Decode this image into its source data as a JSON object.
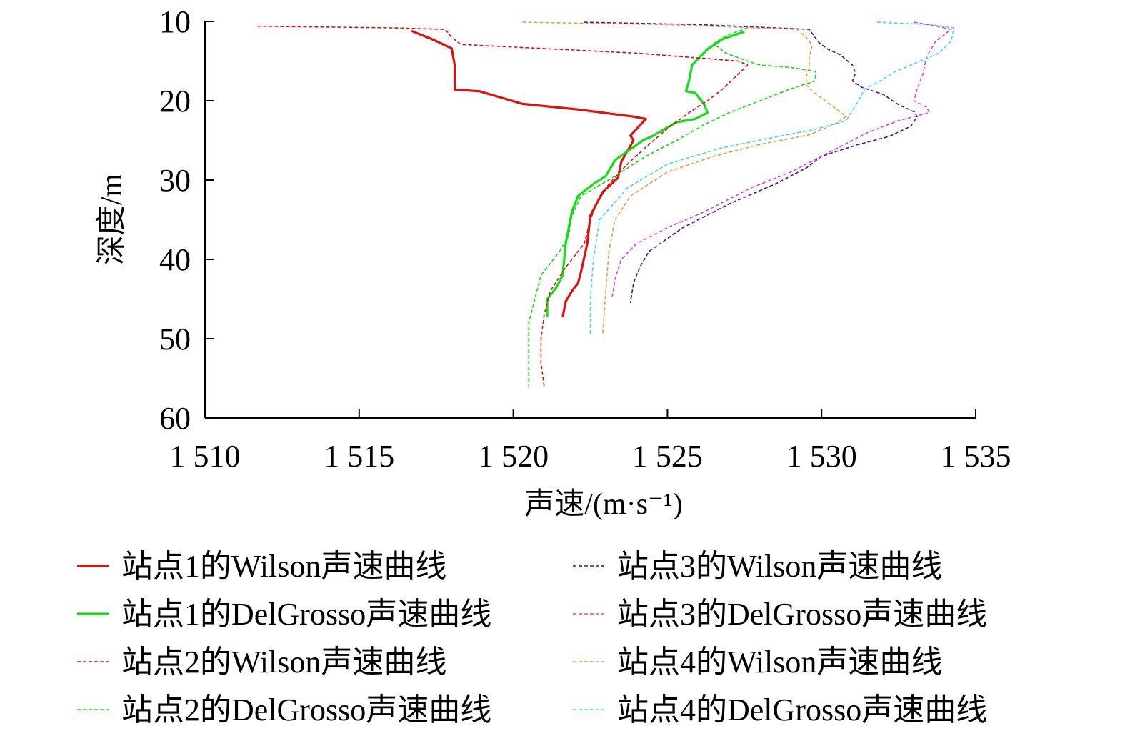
{
  "chart_data": {
    "type": "line",
    "xlabel": "声速/(m·s⁻¹)",
    "ylabel": "深度/m",
    "xlim": [
      1510,
      1535
    ],
    "ylim": [
      10,
      60
    ],
    "y_inverted": true,
    "x_ticks": [
      1510,
      1515,
      1520,
      1525,
      1530,
      1535
    ],
    "x_tick_labels": [
      "1 510",
      "1 515",
      "1 520",
      "1 525",
      "1 530",
      "1 535"
    ],
    "y_ticks": [
      10,
      20,
      30,
      40,
      50,
      60
    ],
    "y_tick_labels": [
      "10",
      "20",
      "30",
      "40",
      "50",
      "60"
    ],
    "grid": false,
    "legend_position": "bottom",
    "series": [
      {
        "name": "站点1的Wilson声速曲线",
        "color": "#e01010",
        "style": "solid",
        "x": [
          1516.7,
          1517.4,
          1518.0,
          1518.1,
          1518.1,
          1518.9,
          1520.3,
          1522.1,
          1523.1,
          1523.9,
          1524.3,
          1523.8,
          1523.9,
          1523.5,
          1523.4,
          1522.9,
          1522.7,
          1522.5,
          1522.4,
          1522.2,
          1522.1,
          1521.9,
          1521.7,
          1521.6
        ],
        "y": [
          11.2,
          12.3,
          13.4,
          15.5,
          18.6,
          18.8,
          20.4,
          21.1,
          21.6,
          22.0,
          22.3,
          24.4,
          25.0,
          27.7,
          29.7,
          31.5,
          33.0,
          34.5,
          38.0,
          41.5,
          43.0,
          44.0,
          45.3,
          47.3
        ]
      },
      {
        "name": "站点1的DelGrosso声速曲线",
        "color": "#12e012",
        "style": "solid",
        "x": [
          1527.5,
          1526.8,
          1526.3,
          1525.8,
          1525.7,
          1525.6,
          1525.9,
          1526.2,
          1526.3,
          1525.9,
          1525.3,
          1524.5,
          1524.2,
          1523.3,
          1523.0,
          1522.6,
          1522.1,
          1521.9,
          1521.7,
          1521.6,
          1521.4,
          1521.1,
          1521.1
        ],
        "y": [
          11.3,
          12.2,
          13.5,
          15.5,
          17.5,
          18.8,
          19.0,
          20.5,
          21.5,
          22.3,
          22.7,
          24.5,
          25.0,
          27.5,
          29.5,
          30.5,
          32.0,
          34.0,
          38.0,
          42.0,
          43.5,
          45.0,
          47.3
        ]
      },
      {
        "name": "站点2的Wilson声速曲线",
        "color": "#e01010",
        "style": "dashed",
        "x": [
          1511.7,
          1516.0,
          1517.8,
          1518.0,
          1518.3,
          1524.0,
          1527.3,
          1527.6,
          1527.2,
          1526.8,
          1526.3,
          1525.7,
          1525.0,
          1524.4,
          1523.7,
          1523.1,
          1522.7,
          1522.5,
          1522.3,
          1521.7,
          1521.2,
          1521.0,
          1520.9,
          1520.9,
          1521.0
        ],
        "y": [
          10.6,
          10.8,
          11.0,
          12.0,
          12.9,
          14.0,
          15.0,
          15.5,
          17.0,
          18.5,
          20.0,
          21.5,
          23.5,
          25.5,
          28.0,
          30.5,
          33.0,
          35.0,
          38.0,
          41.0,
          44.0,
          47.0,
          50.0,
          53.0,
          56.0
        ]
      },
      {
        "name": "站点2的DelGrosso声速曲线",
        "color": "#12e012",
        "style": "dashed",
        "x": [
          1527.6,
          1526.9,
          1526.5,
          1526.9,
          1527.6,
          1528.0,
          1529.0,
          1529.8,
          1529.8,
          1529.0,
          1528.0,
          1527.0,
          1526.2,
          1525.3,
          1524.3,
          1523.3,
          1522.2,
          1521.9,
          1521.8,
          1521.5,
          1520.9,
          1520.7,
          1520.5,
          1520.5,
          1520.5
        ],
        "y": [
          10.8,
          11.8,
          12.8,
          14.0,
          15.0,
          15.5,
          15.8,
          16.3,
          17.5,
          18.5,
          20.0,
          21.5,
          23.0,
          25.0,
          27.0,
          29.5,
          32.0,
          34.5,
          37.0,
          39.0,
          42.0,
          45.0,
          48.0,
          52.0,
          56.0
        ]
      },
      {
        "name": "站点3的Wilson声速曲线",
        "color": "#3a10c8",
        "style": "dashed",
        "x": [
          1522.3,
          1526.0,
          1529.6,
          1529.9,
          1530.2,
          1530.6,
          1531.0,
          1531.1,
          1531.0,
          1531.3,
          1532.0,
          1532.5,
          1533.0,
          1533.1,
          1532.9,
          1532.2,
          1531.2,
          1530.0,
          1529.5,
          1528.5,
          1527.0,
          1525.5,
          1524.4,
          1524.1,
          1523.9,
          1523.8
        ],
        "y": [
          10.1,
          10.4,
          11.0,
          12.6,
          13.5,
          14.2,
          15.5,
          16.5,
          17.5,
          18.3,
          19.2,
          20.5,
          21.4,
          22.0,
          23.2,
          24.5,
          25.5,
          27.0,
          28.5,
          30.5,
          33.0,
          36.0,
          39.0,
          41.0,
          43.0,
          45.5
        ]
      },
      {
        "name": "站点3的DelGrosso声速曲线",
        "color": "#e040e0",
        "style": "dashed",
        "x": [
          1533.0,
          1533.6,
          1534.2,
          1533.7,
          1533.4,
          1533.3,
          1533.1,
          1533.0,
          1533.4,
          1533.5,
          1532.5,
          1531.5,
          1531.0,
          1530.0,
          1529.0,
          1527.7,
          1526.2,
          1525.0,
          1524.0,
          1523.5,
          1523.3,
          1523.2
        ],
        "y": [
          10.1,
          10.5,
          11.0,
          12.5,
          14.5,
          16.5,
          18.5,
          20.0,
          20.8,
          21.5,
          22.5,
          24.0,
          25.0,
          27.0,
          29.0,
          31.0,
          34.0,
          36.0,
          38.0,
          40.0,
          42.5,
          45.0
        ]
      },
      {
        "name": "站点4的Wilson声速曲线",
        "color": "#e8a040",
        "style": "dashed",
        "x": [
          1520.3,
          1525.0,
          1529.2,
          1529.5,
          1529.7,
          1529.6,
          1529.6,
          1529.5,
          1529.5,
          1529.7,
          1530.3,
          1530.8,
          1530.4,
          1529.6,
          1528.0,
          1526.5,
          1525.0,
          1523.8,
          1523.3,
          1523.1,
          1523.0,
          1522.9
        ],
        "y": [
          10.1,
          10.4,
          11.0,
          12.0,
          13.0,
          14.5,
          16.0,
          17.0,
          18.0,
          18.8,
          20.5,
          22.0,
          23.0,
          24.3,
          25.5,
          27.0,
          29.0,
          32.0,
          35.0,
          39.0,
          44.0,
          49.5
        ]
      },
      {
        "name": "站点4的DelGrosso声速曲线",
        "color": "#40d8f0",
        "style": "dashed",
        "x": [
          1531.8,
          1533.5,
          1534.3,
          1534.2,
          1533.8,
          1533.2,
          1532.4,
          1531.9,
          1531.4,
          1531.2,
          1531.0,
          1530.8,
          1529.8,
          1528.6,
          1526.7,
          1525.0,
          1523.7,
          1522.8,
          1522.6,
          1522.5,
          1522.5
        ],
        "y": [
          10.1,
          10.4,
          10.8,
          12.5,
          14.0,
          15.0,
          16.3,
          17.5,
          18.5,
          20.0,
          21.2,
          22.5,
          23.6,
          24.5,
          26.0,
          28.0,
          31.0,
          35.0,
          40.0,
          45.0,
          49.5
        ]
      }
    ]
  }
}
